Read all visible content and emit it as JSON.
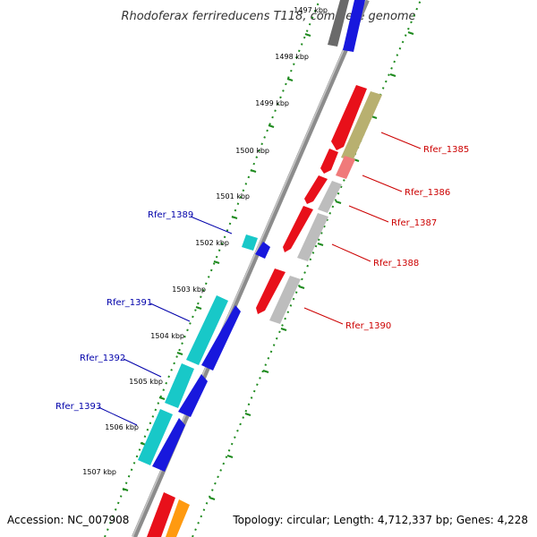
{
  "title": "Rhodoferax ferrireducens T118, complete genome",
  "footer": {
    "accession": "Accession: NC_007908",
    "topology": "Topology: circular; Length: 4,712,337 bp; Genes: 4,228"
  },
  "colors": {
    "backbone": "#8c8c8c",
    "tick": "#1e8a1e",
    "forward_label": "#cc0000",
    "reverse_label": "#0000aa",
    "gene_red": "#e8101a",
    "gene_blue": "#1818dd",
    "gene_cyan": "#18c8c8",
    "gene_gray": "#bdbdbd",
    "gene_olive": "#b8b070",
    "gene_pink": "#f07a7a",
    "gene_orange": "#ff9a10",
    "gene_darkgray": "#6a6a6a"
  },
  "scale_labels": [
    "1497 kbp",
    "1498 kbp",
    "1499 kbp",
    "1500 kbp",
    "1501 kbp",
    "1502 kbp",
    "1503 kbp",
    "1504 kbp",
    "1505 kbp",
    "1506 kbp",
    "1507 kbp"
  ],
  "gene_labels_forward": [
    "Rfer_1385",
    "Rfer_1386",
    "Rfer_1387",
    "Rfer_1388",
    "Rfer_1390"
  ],
  "gene_labels_reverse": [
    "Rfer_1389",
    "Rfer_1391",
    "Rfer_1392",
    "Rfer_1393"
  ]
}
